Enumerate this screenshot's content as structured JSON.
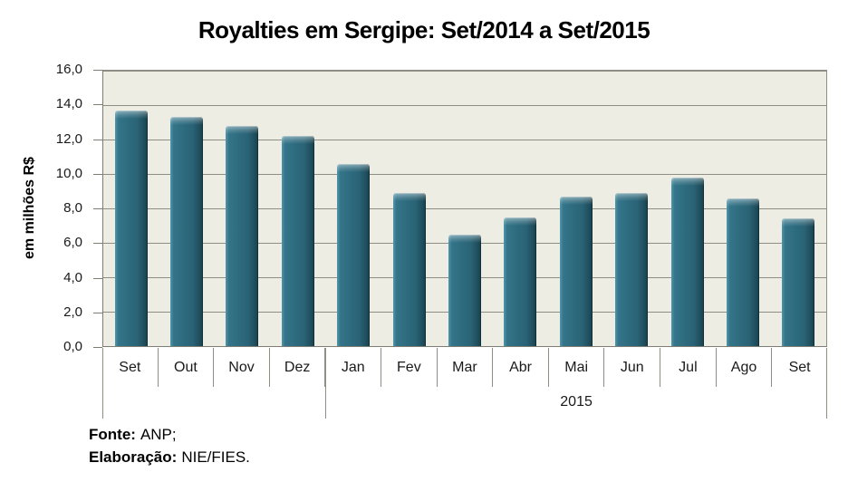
{
  "chart_data": {
    "type": "bar",
    "title": "Royalties em Sergipe: Set/2014 a Set/2015",
    "ylabel": "em milhões R$",
    "categories": [
      "Set",
      "Out",
      "Nov",
      "Dez",
      "Jan",
      "Fev",
      "Mar",
      "Abr",
      "Mai",
      "Jun",
      "Jul",
      "Ago",
      "Set"
    ],
    "values": [
      13.7,
      13.3,
      12.8,
      12.2,
      10.6,
      8.9,
      6.5,
      7.5,
      8.7,
      8.9,
      9.8,
      8.6,
      7.4
    ],
    "groups": [
      {
        "label": "",
        "span": 4
      },
      {
        "label": "2015",
        "span": 9
      }
    ],
    "ylim": [
      0,
      16
    ],
    "ytick_step": 2,
    "ytick_labels": [
      "0,0",
      "2,0",
      "4,0",
      "6,0",
      "8,0",
      "10,0",
      "12,0",
      "14,0",
      "16,0"
    ],
    "grid": true,
    "legend": "none"
  },
  "footer": {
    "source_label": "Fonte:",
    "source_value": "ANP;",
    "elaboration_label": "Elaboração:",
    "elaboration_value": "NIE/FIES."
  },
  "colors": {
    "bar_base": "#2E6B7F",
    "bar_light": "#5EA4B8",
    "bar_dark": "#173F4C",
    "plot_bg": "#EDEDE3",
    "gridline": "#8E8E84",
    "axis": "#7D7D74",
    "text": "#1A1A1A",
    "background": "#FFFFFF"
  }
}
